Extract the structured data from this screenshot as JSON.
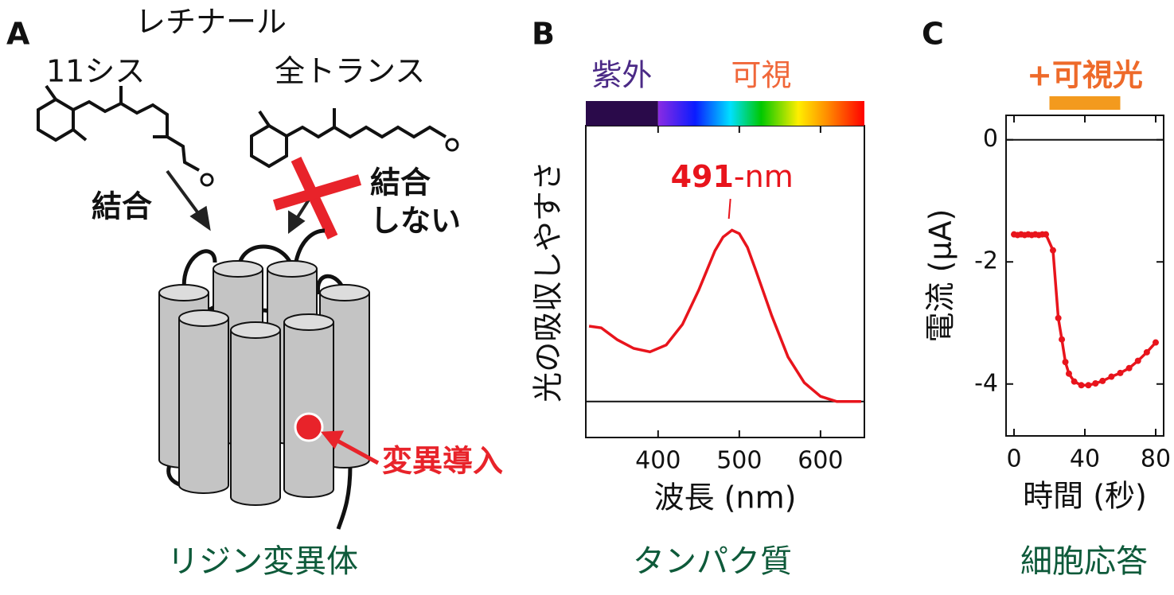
{
  "panel_a": {
    "panel": "A",
    "molecule": "レチナール",
    "cis": "11シス",
    "trans": "全トランス",
    "binds": "結合",
    "no_bind": [
      "結合",
      "しない"
    ],
    "mutation": "変異導入",
    "caption": "リジン変異体"
  },
  "chart_data": [
    {
      "type": "line",
      "panel": "B",
      "x_label": "波長 (nm)",
      "y_label": "光の吸収しやすさ",
      "caption": "タンパク質",
      "color": "#e8141c",
      "x": [
        315,
        330,
        350,
        370,
        390,
        410,
        430,
        450,
        470,
        480,
        491,
        500,
        510,
        520,
        540,
        560,
        580,
        600,
        620,
        640,
        650
      ],
      "values": [
        0.44,
        0.43,
        0.36,
        0.31,
        0.29,
        0.33,
        0.45,
        0.65,
        0.88,
        0.96,
        1.0,
        0.98,
        0.9,
        0.77,
        0.5,
        0.26,
        0.11,
        0.03,
        0.0,
        0.0,
        0.0
      ],
      "xlim": [
        311,
        654
      ],
      "xticks": [
        400,
        500,
        600
      ],
      "ylim": [
        -0.21,
        1.61
      ],
      "hline": 0,
      "annotation": {
        "value": 491,
        "suffix": "-nm"
      },
      "spectrum": {
        "labels": [
          "紫外",
          "可視"
        ],
        "boundary": 400
      }
    },
    {
      "type": "line",
      "panel": "C",
      "markers": true,
      "x_label": "時間 (秒)",
      "y_label": "電流 (μA)",
      "caption": "細胞応答",
      "color": "#e8141c",
      "x": [
        0,
        2,
        4,
        6,
        8,
        10,
        12,
        14,
        16,
        18,
        22,
        25,
        27,
        29,
        31,
        34,
        38,
        42,
        46,
        50,
        55,
        60,
        65,
        70,
        75,
        80
      ],
      "values": [
        -1.55,
        -1.56,
        -1.55,
        -1.56,
        -1.55,
        -1.56,
        -1.55,
        -1.56,
        -1.55,
        -1.55,
        -1.81,
        -2.92,
        -3.27,
        -3.64,
        -3.83,
        -3.96,
        -4.02,
        -4.02,
        -3.99,
        -3.95,
        -3.88,
        -3.82,
        -3.74,
        -3.62,
        -3.48,
        -3.32
      ],
      "xlim": [
        -4.5,
        84.5
      ],
      "xticks": [
        0,
        40,
        80
      ],
      "ylim": [
        -4.85,
        0.4
      ],
      "yticks": [
        0,
        -2,
        -4
      ],
      "hline": 0,
      "stimulus": {
        "label": "+可視光",
        "range": [
          20,
          60
        ],
        "color": "#f39a1e"
      }
    }
  ]
}
